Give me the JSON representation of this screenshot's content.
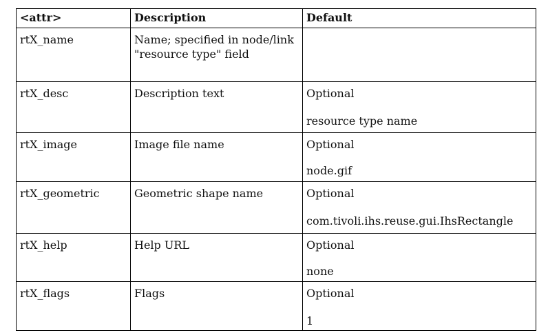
{
  "table": {
    "headers": [
      "<attr>",
      "Description",
      "Default"
    ],
    "rows": [
      {
        "attr": "rtX_name",
        "description": "Name; specified in node/link \"resource type\" field",
        "optional": "",
        "default": ""
      },
      {
        "attr": "rtX_desc",
        "description": "Description text",
        "optional": "Optional",
        "default": "resource type name"
      },
      {
        "attr": "rtX_image",
        "description": "Image file name",
        "optional": "Optional",
        "default": "node.gif"
      },
      {
        "attr": "rtX_geometric",
        "description": "Geometric shape name",
        "optional": "Optional",
        "default": "com.tivoli.ihs.reuse.gui.IhsRectangle"
      },
      {
        "attr": "rtX_help",
        "description": "Help URL",
        "optional": "Optional",
        "default": "none"
      },
      {
        "attr": "rtX_flags",
        "description": "Flags",
        "optional": "Optional",
        "default": "1"
      }
    ]
  }
}
